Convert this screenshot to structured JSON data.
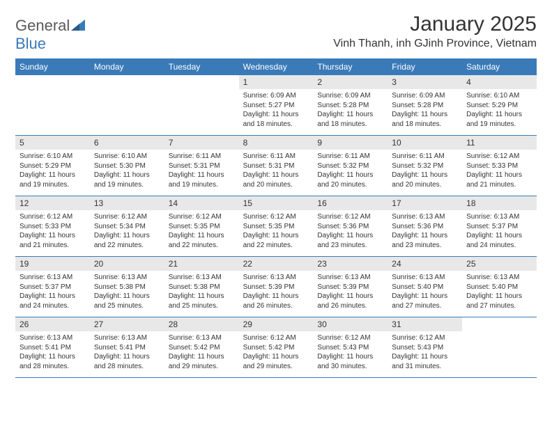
{
  "brand": {
    "part1": "General",
    "part2": "Blue"
  },
  "title": "January 2025",
  "location": "Vinh Thanh, inh GJinh Province, Vietnam",
  "colors": {
    "header_bg": "#3a7ab8",
    "daynum_bg": "#e8e8e8",
    "text": "#333333",
    "brand_gray": "#5a5a5a",
    "brand_blue": "#3a7ab8",
    "page_bg": "#ffffff"
  },
  "day_names": [
    "Sunday",
    "Monday",
    "Tuesday",
    "Wednesday",
    "Thursday",
    "Friday",
    "Saturday"
  ],
  "weeks": [
    [
      {
        "n": "",
        "sr": "",
        "ss": "",
        "dl": ""
      },
      {
        "n": "",
        "sr": "",
        "ss": "",
        "dl": ""
      },
      {
        "n": "",
        "sr": "",
        "ss": "",
        "dl": ""
      },
      {
        "n": "1",
        "sr": "6:09 AM",
        "ss": "5:27 PM",
        "dl": "11 hours and 18 minutes."
      },
      {
        "n": "2",
        "sr": "6:09 AM",
        "ss": "5:28 PM",
        "dl": "11 hours and 18 minutes."
      },
      {
        "n": "3",
        "sr": "6:09 AM",
        "ss": "5:28 PM",
        "dl": "11 hours and 18 minutes."
      },
      {
        "n": "4",
        "sr": "6:10 AM",
        "ss": "5:29 PM",
        "dl": "11 hours and 19 minutes."
      }
    ],
    [
      {
        "n": "5",
        "sr": "6:10 AM",
        "ss": "5:29 PM",
        "dl": "11 hours and 19 minutes."
      },
      {
        "n": "6",
        "sr": "6:10 AM",
        "ss": "5:30 PM",
        "dl": "11 hours and 19 minutes."
      },
      {
        "n": "7",
        "sr": "6:11 AM",
        "ss": "5:31 PM",
        "dl": "11 hours and 19 minutes."
      },
      {
        "n": "8",
        "sr": "6:11 AM",
        "ss": "5:31 PM",
        "dl": "11 hours and 20 minutes."
      },
      {
        "n": "9",
        "sr": "6:11 AM",
        "ss": "5:32 PM",
        "dl": "11 hours and 20 minutes."
      },
      {
        "n": "10",
        "sr": "6:11 AM",
        "ss": "5:32 PM",
        "dl": "11 hours and 20 minutes."
      },
      {
        "n": "11",
        "sr": "6:12 AM",
        "ss": "5:33 PM",
        "dl": "11 hours and 21 minutes."
      }
    ],
    [
      {
        "n": "12",
        "sr": "6:12 AM",
        "ss": "5:33 PM",
        "dl": "11 hours and 21 minutes."
      },
      {
        "n": "13",
        "sr": "6:12 AM",
        "ss": "5:34 PM",
        "dl": "11 hours and 22 minutes."
      },
      {
        "n": "14",
        "sr": "6:12 AM",
        "ss": "5:35 PM",
        "dl": "11 hours and 22 minutes."
      },
      {
        "n": "15",
        "sr": "6:12 AM",
        "ss": "5:35 PM",
        "dl": "11 hours and 22 minutes."
      },
      {
        "n": "16",
        "sr": "6:12 AM",
        "ss": "5:36 PM",
        "dl": "11 hours and 23 minutes."
      },
      {
        "n": "17",
        "sr": "6:13 AM",
        "ss": "5:36 PM",
        "dl": "11 hours and 23 minutes."
      },
      {
        "n": "18",
        "sr": "6:13 AM",
        "ss": "5:37 PM",
        "dl": "11 hours and 24 minutes."
      }
    ],
    [
      {
        "n": "19",
        "sr": "6:13 AM",
        "ss": "5:37 PM",
        "dl": "11 hours and 24 minutes."
      },
      {
        "n": "20",
        "sr": "6:13 AM",
        "ss": "5:38 PM",
        "dl": "11 hours and 25 minutes."
      },
      {
        "n": "21",
        "sr": "6:13 AM",
        "ss": "5:38 PM",
        "dl": "11 hours and 25 minutes."
      },
      {
        "n": "22",
        "sr": "6:13 AM",
        "ss": "5:39 PM",
        "dl": "11 hours and 26 minutes."
      },
      {
        "n": "23",
        "sr": "6:13 AM",
        "ss": "5:39 PM",
        "dl": "11 hours and 26 minutes."
      },
      {
        "n": "24",
        "sr": "6:13 AM",
        "ss": "5:40 PM",
        "dl": "11 hours and 27 minutes."
      },
      {
        "n": "25",
        "sr": "6:13 AM",
        "ss": "5:40 PM",
        "dl": "11 hours and 27 minutes."
      }
    ],
    [
      {
        "n": "26",
        "sr": "6:13 AM",
        "ss": "5:41 PM",
        "dl": "11 hours and 28 minutes."
      },
      {
        "n": "27",
        "sr": "6:13 AM",
        "ss": "5:41 PM",
        "dl": "11 hours and 28 minutes."
      },
      {
        "n": "28",
        "sr": "6:13 AM",
        "ss": "5:42 PM",
        "dl": "11 hours and 29 minutes."
      },
      {
        "n": "29",
        "sr": "6:12 AM",
        "ss": "5:42 PM",
        "dl": "11 hours and 29 minutes."
      },
      {
        "n": "30",
        "sr": "6:12 AM",
        "ss": "5:43 PM",
        "dl": "11 hours and 30 minutes."
      },
      {
        "n": "31",
        "sr": "6:12 AM",
        "ss": "5:43 PM",
        "dl": "11 hours and 31 minutes."
      },
      {
        "n": "",
        "sr": "",
        "ss": "",
        "dl": ""
      }
    ]
  ],
  "labels": {
    "sunrise": "Sunrise: ",
    "sunset": "Sunset: ",
    "daylight": "Daylight: "
  }
}
